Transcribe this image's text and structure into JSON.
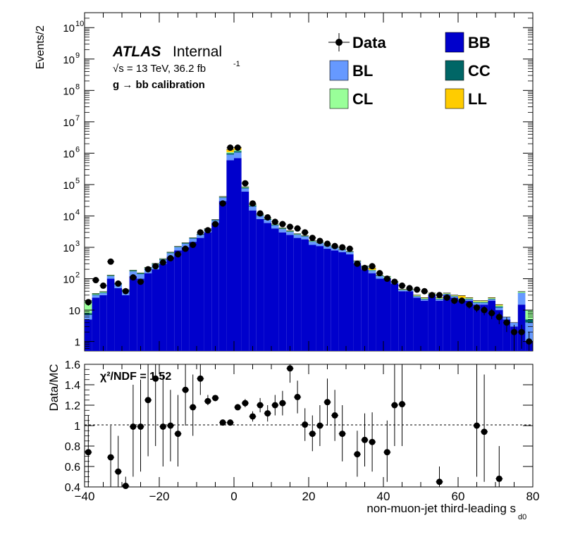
{
  "chart_data": [
    {
      "type": "histogram-stacked",
      "panel": "main",
      "ylabel": "Events/2",
      "yscale": "log",
      "ylim": [
        0.5,
        30000000000
      ],
      "xlim": [
        -40,
        80
      ],
      "bin_width": 2,
      "atlas_label": "ATLAS",
      "atlas_status": "Internal",
      "energy_label": "√s = 13 TeV, 36.2 fb",
      "lumi_exponent": "-1",
      "selection_label": "g  → bb calibration",
      "ytick_labels": [
        "1",
        "10",
        "10",
        "10",
        "10",
        "10",
        "10",
        "10",
        "10",
        "10",
        "10"
      ],
      "ytick_exponents": [
        "",
        "",
        "2",
        "3",
        "4",
        "5",
        "6",
        "7",
        "8",
        "9",
        "10"
      ],
      "legend": [
        {
          "label": "Data",
          "color": "#000000",
          "style": "marker"
        },
        {
          "label": "BB",
          "color": "#0000cc",
          "style": "box"
        },
        {
          "label": "BL",
          "color": "#6699ff",
          "style": "box"
        },
        {
          "label": "CC",
          "color": "#006666",
          "style": "box"
        },
        {
          "label": "CL",
          "color": "#99ff99",
          "style": "box"
        },
        {
          "label": "LL",
          "color": "#ffcc00",
          "style": "box"
        }
      ],
      "x_bin_centers": [
        -39,
        -37,
        -35,
        -33,
        -31,
        -29,
        -27,
        -25,
        -23,
        -21,
        -19,
        -17,
        -15,
        -13,
        -11,
        -9,
        -7,
        -5,
        -3,
        -1,
        1,
        3,
        5,
        7,
        9,
        11,
        13,
        15,
        17,
        19,
        21,
        23,
        25,
        27,
        29,
        31,
        33,
        35,
        37,
        39,
        41,
        43,
        45,
        47,
        49,
        51,
        53,
        55,
        57,
        59,
        61,
        63,
        65,
        67,
        69,
        71,
        73,
        75,
        77,
        79
      ],
      "series": [
        {
          "name": "BB",
          "color": "#0000cc",
          "values": [
            5,
            25,
            30,
            100,
            50,
            30,
            120,
            100,
            150,
            200,
            300,
            500,
            800,
            1000,
            1500,
            2000,
            3000,
            6000,
            30000,
            600000,
            700000,
            60000,
            15000,
            8000,
            6000,
            4000,
            3000,
            2500,
            2000,
            1800,
            1200,
            1100,
            900,
            800,
            700,
            600,
            300,
            200,
            150,
            100,
            100,
            70,
            40,
            40,
            25,
            20,
            30,
            20,
            30,
            25,
            20,
            20,
            15,
            15,
            20,
            10,
            5,
            3,
            15,
            1
          ]
        },
        {
          "name": "BL",
          "color": "#6699ff",
          "values": [
            2,
            5,
            5,
            20,
            15,
            10,
            50,
            40,
            60,
            80,
            100,
            150,
            200,
            300,
            400,
            500,
            700,
            1200,
            8000,
            300000,
            350000,
            15000,
            5000,
            2000,
            1500,
            1000,
            800,
            600,
            500,
            400,
            300,
            250,
            200,
            150,
            120,
            100,
            50,
            40,
            30,
            20,
            5,
            5,
            3,
            3,
            2,
            2,
            2,
            2,
            2,
            2,
            2,
            2,
            2,
            2,
            2,
            2,
            1,
            1,
            20,
            3
          ]
        },
        {
          "name": "CC",
          "color": "#006666",
          "values": [
            1,
            2,
            2,
            5,
            4,
            3,
            10,
            8,
            10,
            15,
            20,
            30,
            40,
            60,
            80,
            100,
            150,
            300,
            2000,
            100000,
            120000,
            5000,
            1500,
            500,
            400,
            300,
            200,
            150,
            100,
            80,
            60,
            50,
            40,
            30,
            25,
            20,
            10,
            8,
            6,
            4,
            2,
            2,
            1,
            1,
            1,
            1,
            1,
            1,
            1,
            1,
            1,
            1,
            1,
            1,
            1,
            1,
            0,
            0,
            1,
            1
          ]
        },
        {
          "name": "CL",
          "color": "#99ff99",
          "values": [
            12,
            2,
            2,
            5,
            3,
            2,
            8,
            6,
            10,
            12,
            15,
            20,
            30,
            40,
            50,
            60,
            80,
            150,
            1000,
            80000,
            90000,
            3000,
            800,
            300,
            200,
            150,
            100,
            80,
            60,
            50,
            40,
            30,
            25,
            20,
            15,
            12,
            8,
            6,
            5,
            3,
            10,
            2,
            1,
            1,
            1,
            1,
            1,
            1,
            1,
            1,
            1,
            1,
            1,
            1,
            1,
            1,
            0,
            0,
            3,
            5
          ]
        },
        {
          "name": "LL",
          "color": "#ffcc00",
          "values": [
            0,
            0,
            0,
            0,
            0,
            0,
            0,
            0,
            0,
            0,
            0,
            0,
            0,
            0,
            0,
            0,
            0,
            0,
            600,
            250000,
            280000,
            2000,
            500,
            200,
            150,
            100,
            80,
            60,
            40,
            30,
            25,
            20,
            15,
            12,
            10,
            8,
            5,
            4,
            30,
            3,
            2,
            1,
            1,
            1,
            1,
            1,
            1,
            1,
            1,
            1,
            5,
            1,
            1,
            1,
            1,
            1,
            0,
            0,
            0,
            0
          ]
        },
        {
          "name": "Data",
          "color": "#000000",
          "values": [
            18,
            90,
            60,
            350,
            70,
            40,
            110,
            80,
            200,
            250,
            330,
            450,
            600,
            900,
            1200,
            3000,
            3500,
            5500,
            25000,
            1500000,
            1500000,
            110000,
            25000,
            12000,
            9000,
            6500,
            5500,
            4500,
            4000,
            3000,
            2000,
            1600,
            1300,
            1100,
            1000,
            900,
            300,
            220,
            250,
            150,
            100,
            80,
            60,
            50,
            45,
            40,
            30,
            30,
            25,
            20,
            20,
            15,
            12,
            10,
            8,
            6,
            4,
            2,
            2,
            1
          ]
        }
      ]
    },
    {
      "type": "scatter",
      "panel": "ratio",
      "ylabel": "Data/MC",
      "xlabel": "non-muon-jet third-leading s",
      "xlabel_subscript": "d0",
      "ylim": [
        0.4,
        1.6
      ],
      "xlim": [
        -40,
        80
      ],
      "xticks": [
        -40,
        -20,
        0,
        20,
        40,
        60,
        80
      ],
      "yticks": [
        0.4,
        0.6,
        0.8,
        1,
        1.2,
        1.4,
        1.6
      ],
      "xtick_labels": [
        "−40",
        "−20",
        "0",
        "20",
        "40",
        "60",
        "80"
      ],
      "ytick_labels": [
        "0.4",
        "0.6",
        "0.8",
        "1",
        "1.2",
        "1.4",
        "1.6"
      ],
      "reference_line": 1,
      "chi2_label": "χ²/NDF = 1.52",
      "points": [
        {
          "x": -39,
          "y": 0.74,
          "lo": 0.4,
          "hi": 1.1
        },
        {
          "x": -33,
          "y": 0.69,
          "lo": 0.4,
          "hi": 1.0
        },
        {
          "x": -31,
          "y": 0.55,
          "lo": 0.4,
          "hi": 0.9
        },
        {
          "x": -29,
          "y": 0.41,
          "lo": 0.4,
          "hi": 0.5
        },
        {
          "x": -27,
          "y": 0.99,
          "lo": 0.5,
          "hi": 1.4
        },
        {
          "x": -25,
          "y": 0.99,
          "lo": 0.55,
          "hi": 1.45
        },
        {
          "x": -23,
          "y": 1.25,
          "lo": 0.7,
          "hi": 1.6
        },
        {
          "x": -21,
          "y": 1.46,
          "lo": 0.8,
          "hi": 1.6
        },
        {
          "x": -19,
          "y": 0.99,
          "lo": 0.6,
          "hi": 1.5
        },
        {
          "x": -17,
          "y": 1.0,
          "lo": 0.65,
          "hi": 1.35
        },
        {
          "x": -15,
          "y": 0.92,
          "lo": 0.6,
          "hi": 1.3
        },
        {
          "x": -13,
          "y": 1.35,
          "lo": 1.0,
          "hi": 1.6
        },
        {
          "x": -11,
          "y": 1.18,
          "lo": 0.9,
          "hi": 1.5
        },
        {
          "x": -9,
          "y": 1.46,
          "lo": 1.3,
          "hi": 1.6
        },
        {
          "x": -7,
          "y": 1.24,
          "lo": 1.2,
          "hi": 1.3
        },
        {
          "x": -5,
          "y": 1.27,
          "lo": 1.24,
          "hi": 1.3
        },
        {
          "x": -3,
          "y": 1.03,
          "lo": 1.02,
          "hi": 1.04
        },
        {
          "x": -1,
          "y": 1.03,
          "lo": 1.02,
          "hi": 1.04
        },
        {
          "x": 1,
          "y": 1.18,
          "lo": 1.16,
          "hi": 1.2
        },
        {
          "x": 3,
          "y": 1.22,
          "lo": 1.18,
          "hi": 1.26
        },
        {
          "x": 5,
          "y": 1.09,
          "lo": 1.04,
          "hi": 1.14
        },
        {
          "x": 7,
          "y": 1.2,
          "lo": 1.13,
          "hi": 1.27
        },
        {
          "x": 9,
          "y": 1.12,
          "lo": 1.04,
          "hi": 1.2
        },
        {
          "x": 11,
          "y": 1.2,
          "lo": 1.1,
          "hi": 1.3
        },
        {
          "x": 13,
          "y": 1.22,
          "lo": 1.1,
          "hi": 1.34
        },
        {
          "x": 15,
          "y": 1.56,
          "lo": 1.42,
          "hi": 1.6
        },
        {
          "x": 17,
          "y": 1.28,
          "lo": 1.12,
          "hi": 1.44
        },
        {
          "x": 19,
          "y": 1.01,
          "lo": 0.85,
          "hi": 1.17
        },
        {
          "x": 21,
          "y": 0.92,
          "lo": 0.75,
          "hi": 1.1
        },
        {
          "x": 23,
          "y": 1.0,
          "lo": 0.8,
          "hi": 1.2
        },
        {
          "x": 25,
          "y": 1.23,
          "lo": 1.0,
          "hi": 1.46
        },
        {
          "x": 27,
          "y": 1.1,
          "lo": 0.85,
          "hi": 1.35
        },
        {
          "x": 29,
          "y": 0.92,
          "lo": 0.65,
          "hi": 1.2
        },
        {
          "x": 33,
          "y": 0.72,
          "lo": 0.5,
          "hi": 0.95
        },
        {
          "x": 35,
          "y": 0.86,
          "lo": 0.6,
          "hi": 1.12
        },
        {
          "x": 37,
          "y": 0.84,
          "lo": 0.55,
          "hi": 1.13
        },
        {
          "x": 41,
          "y": 0.74,
          "lo": 0.45,
          "hi": 1.05
        },
        {
          "x": 43,
          "y": 1.2,
          "lo": 0.8,
          "hi": 1.6
        },
        {
          "x": 45,
          "y": 1.21,
          "lo": 0.8,
          "hi": 1.6
        },
        {
          "x": 55,
          "y": 0.45,
          "lo": 0.4,
          "hi": 0.6
        },
        {
          "x": 65,
          "y": 1.0,
          "lo": 0.5,
          "hi": 1.6
        },
        {
          "x": 67,
          "y": 0.94,
          "lo": 0.45,
          "hi": 1.5
        },
        {
          "x": 71,
          "y": 0.48,
          "lo": 0.4,
          "hi": 0.8
        }
      ]
    }
  ]
}
